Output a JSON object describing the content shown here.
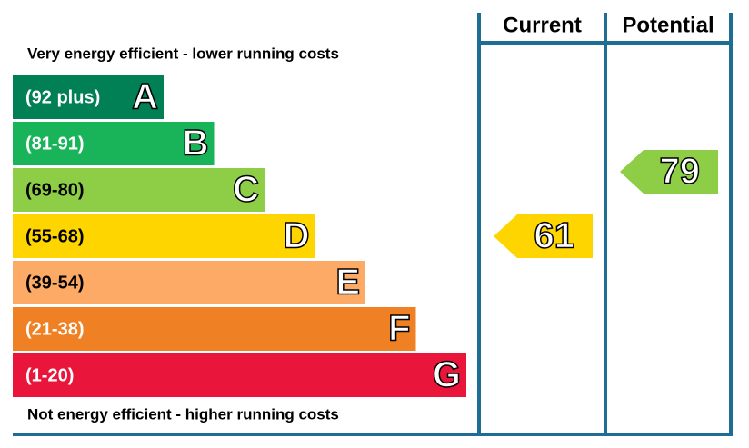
{
  "chart_data": {
    "type": "epc",
    "top_label": "Very energy efficient - lower running costs",
    "bottom_label": "Not energy efficient - higher running costs",
    "columns": [
      "Current",
      "Potential"
    ],
    "bands": [
      {
        "range": "(92 plus)",
        "letter": "A",
        "color": "#008054",
        "text_color": "#ffffff"
      },
      {
        "range": "(81-91)",
        "letter": "B",
        "color": "#19b459",
        "text_color": "#ffffff"
      },
      {
        "range": "(69-80)",
        "letter": "C",
        "color": "#8dce46",
        "text_color": "#000000"
      },
      {
        "range": "(55-68)",
        "letter": "D",
        "color": "#ffd500",
        "text_color": "#000000"
      },
      {
        "range": "(39-54)",
        "letter": "E",
        "color": "#fcaa65",
        "text_color": "#000000"
      },
      {
        "range": "(21-38)",
        "letter": "F",
        "color": "#ef8023",
        "text_color": "#ffffff"
      },
      {
        "range": "(1-20)",
        "letter": "G",
        "color": "#e9153b",
        "text_color": "#ffffff"
      }
    ],
    "values": [
      61,
      79
    ],
    "frame_color": "#1d6d94"
  }
}
